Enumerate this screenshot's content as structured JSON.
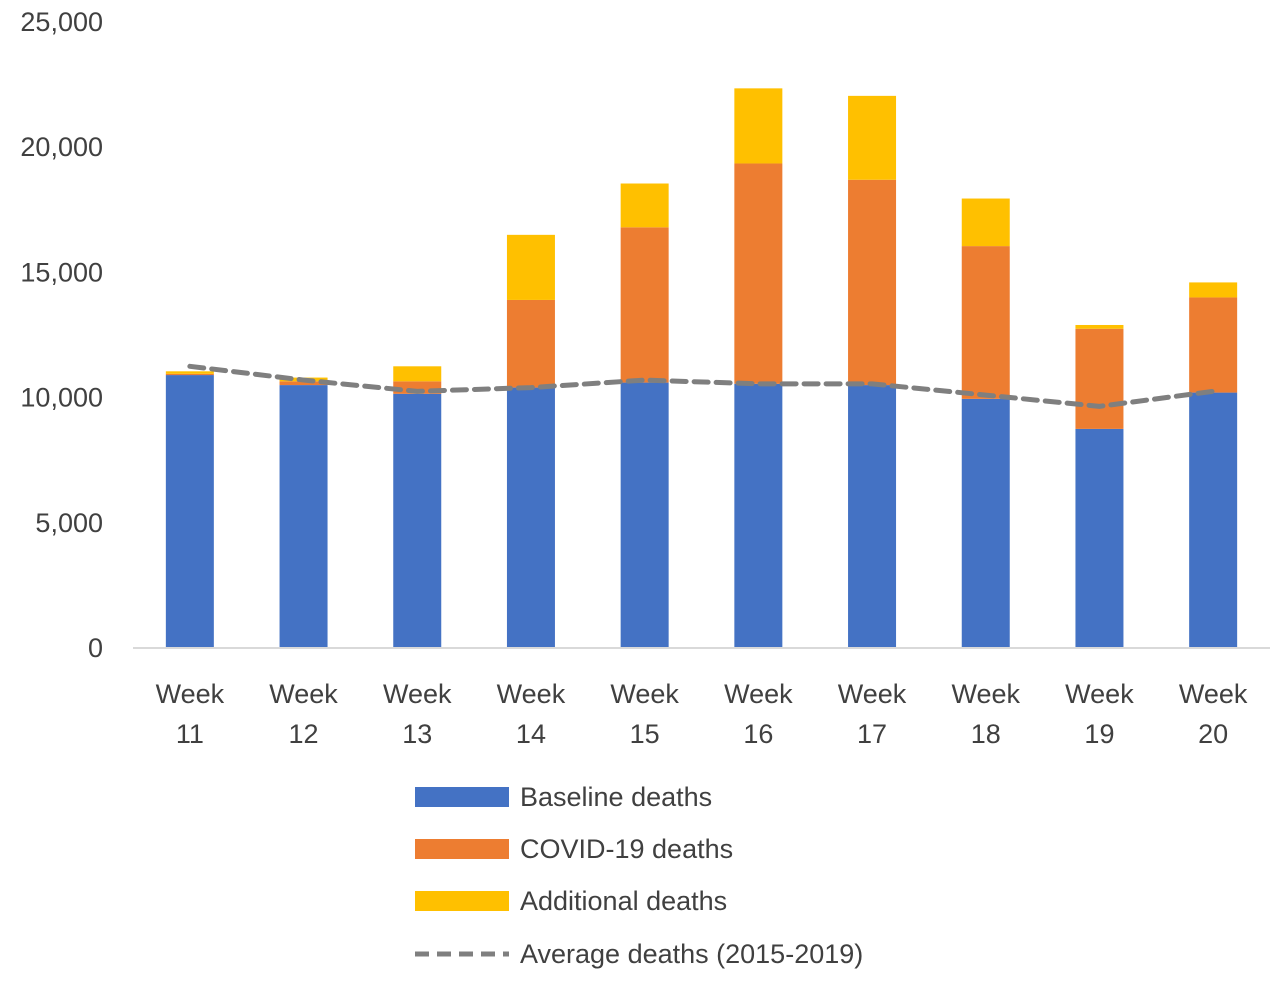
{
  "chart_data": {
    "type": "bar",
    "stacked": true,
    "title": "",
    "xlabel": "",
    "ylabel": "",
    "categories": [
      [
        "Week",
        "11"
      ],
      [
        "Week",
        "12"
      ],
      [
        "Week",
        "13"
      ],
      [
        "Week",
        "14"
      ],
      [
        "Week",
        "15"
      ],
      [
        "Week",
        "16"
      ],
      [
        "Week",
        "17"
      ],
      [
        "Week",
        "18"
      ],
      [
        "Week",
        "19"
      ],
      [
        "Week",
        "20"
      ]
    ],
    "ylim": [
      0,
      25000
    ],
    "yticks": [
      0,
      5000,
      10000,
      15000,
      20000,
      25000
    ],
    "ytick_labels": [
      "0",
      "5,000",
      "10,000",
      "15,000",
      "20,000",
      "25,000"
    ],
    "grid": false,
    "legend_position": "bottom",
    "series": [
      {
        "name": "Baseline deaths",
        "color": "#4472C4",
        "values": [
          10900,
          10500,
          10150,
          10400,
          10600,
          10550,
          10500,
          9950,
          8750,
          10200
        ]
      },
      {
        "name": "COVID-19 deaths",
        "color": "#ED7D31",
        "values": [
          50,
          150,
          500,
          3500,
          6200,
          8800,
          8200,
          6100,
          4000,
          3800
        ]
      },
      {
        "name": "Additional deaths",
        "color": "#FFC000",
        "values": [
          100,
          150,
          600,
          2600,
          1750,
          3000,
          3350,
          1900,
          150,
          600
        ]
      }
    ],
    "line_series": {
      "name": "Average deaths (2015-2019)",
      "color": "#7F7F7F",
      "dashed": true,
      "values": [
        11250,
        10700,
        10250,
        10400,
        10700,
        10550,
        10550,
        10100,
        9650,
        10250
      ]
    }
  }
}
